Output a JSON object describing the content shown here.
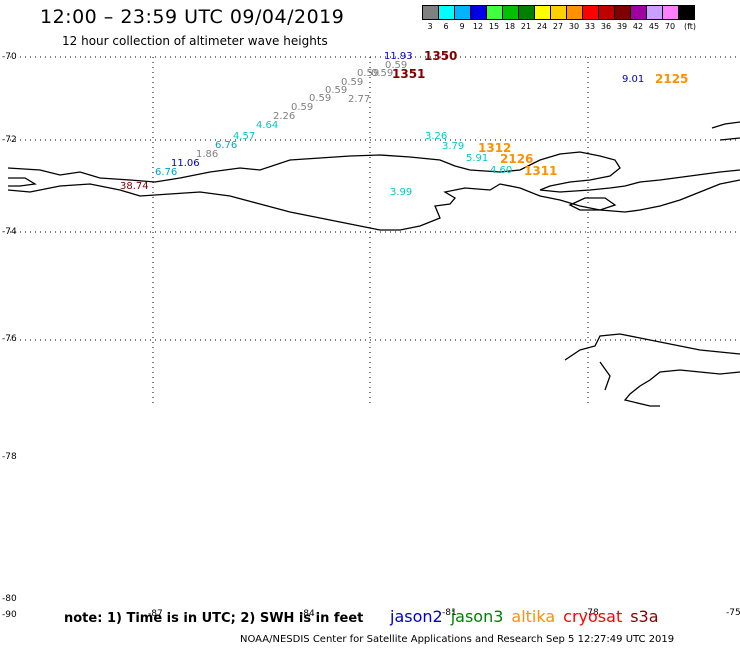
{
  "header": {
    "title": "12:00 – 23:59 UTC 09/04/2019",
    "subtitle": "12 hour collection of altimeter wave heights"
  },
  "legend": {
    "unit": "(ft)",
    "bins": [
      {
        "label": "3",
        "color": "#808080"
      },
      {
        "label": "6",
        "color": "#00ffff"
      },
      {
        "label": "9",
        "color": "#00b4ff"
      },
      {
        "label": "12",
        "color": "#0000e6"
      },
      {
        "label": "15",
        "color": "#40ff40"
      },
      {
        "label": "18",
        "color": "#00c000"
      },
      {
        "label": "21",
        "color": "#008000"
      },
      {
        "label": "24",
        "color": "#ffff00"
      },
      {
        "label": "27",
        "color": "#ffd000"
      },
      {
        "label": "30",
        "color": "#ff9000"
      },
      {
        "label": "33",
        "color": "#ff0000"
      },
      {
        "label": "36",
        "color": "#c00000"
      },
      {
        "label": "39",
        "color": "#800000"
      },
      {
        "label": "42",
        "color": "#a000a0"
      },
      {
        "label": "45",
        "color": "#c8a0ff"
      },
      {
        "label": "70",
        "color": "#ff80ff"
      },
      {
        "label": "",
        "color": "#000000"
      }
    ]
  },
  "axes": {
    "lat_labels": [
      "-70",
      "-72",
      "-74",
      "-76",
      "-78",
      "-80",
      "-90"
    ],
    "lon_labels": [
      "-87",
      "-84",
      "-81",
      "-78",
      "-75"
    ]
  },
  "measurements": [
    {
      "text": "11.93",
      "color": "#0000c8"
    },
    {
      "text": "0.59",
      "color": "#808080"
    },
    {
      "text": "0.59",
      "color": "#808080"
    },
    {
      "text": "0.59",
      "color": "#808080"
    },
    {
      "text": "0.59",
      "color": "#808080"
    },
    {
      "text": "0.59",
      "color": "#808080"
    },
    {
      "text": "2.77",
      "color": "#808080"
    },
    {
      "text": "0.59",
      "color": "#808080"
    },
    {
      "text": "0.59",
      "color": "#808080"
    },
    {
      "text": "2.26",
      "color": "#808080"
    },
    {
      "text": "4.64",
      "color": "#00c8c8"
    },
    {
      "text": "4.57",
      "color": "#00c8c8"
    },
    {
      "text": "6.76",
      "color": "#00a0d0"
    },
    {
      "text": "1.86",
      "color": "#808080"
    },
    {
      "text": "11.06",
      "color": "#0000c8"
    },
    {
      "text": "6.76",
      "color": "#00a0d0"
    },
    {
      "text": "38.74",
      "color": "#800000"
    },
    {
      "text": "3.26",
      "color": "#00c8c8"
    },
    {
      "text": "3.79",
      "color": "#00c8c8"
    },
    {
      "text": "5.91",
      "color": "#00c8c8"
    },
    {
      "text": "4.60",
      "color": "#00c8c8"
    },
    {
      "text": "3.99",
      "color": "#00c8c8"
    },
    {
      "text": "9.01",
      "color": "#0000c8"
    }
  ],
  "times": [
    {
      "text": "1350",
      "color": "#800000"
    },
    {
      "text": "1351",
      "color": "#800000"
    },
    {
      "text": "1312",
      "color": "#ff9000"
    },
    {
      "text": "2126",
      "color": "#ff9000"
    },
    {
      "text": "1311",
      "color": "#ff9000"
    },
    {
      "text": "2125",
      "color": "#ff9000"
    }
  ],
  "footer": {
    "note": "note: 1) Time is in UTC; 2) SWH is in feet",
    "satellites": [
      {
        "name": "jason2",
        "color": "#0000c8"
      },
      {
        "name": "jason3",
        "color": "#008000"
      },
      {
        "name": "altika",
        "color": "#ff9000"
      },
      {
        "name": "cryosat",
        "color": "#ff0000"
      },
      {
        "name": "s3a",
        "color": "#800000"
      }
    ],
    "credit": "NOAA/NESDIS Center for Satellite Applications and Research    Sep  5 12:27:49 UTC 2019"
  }
}
